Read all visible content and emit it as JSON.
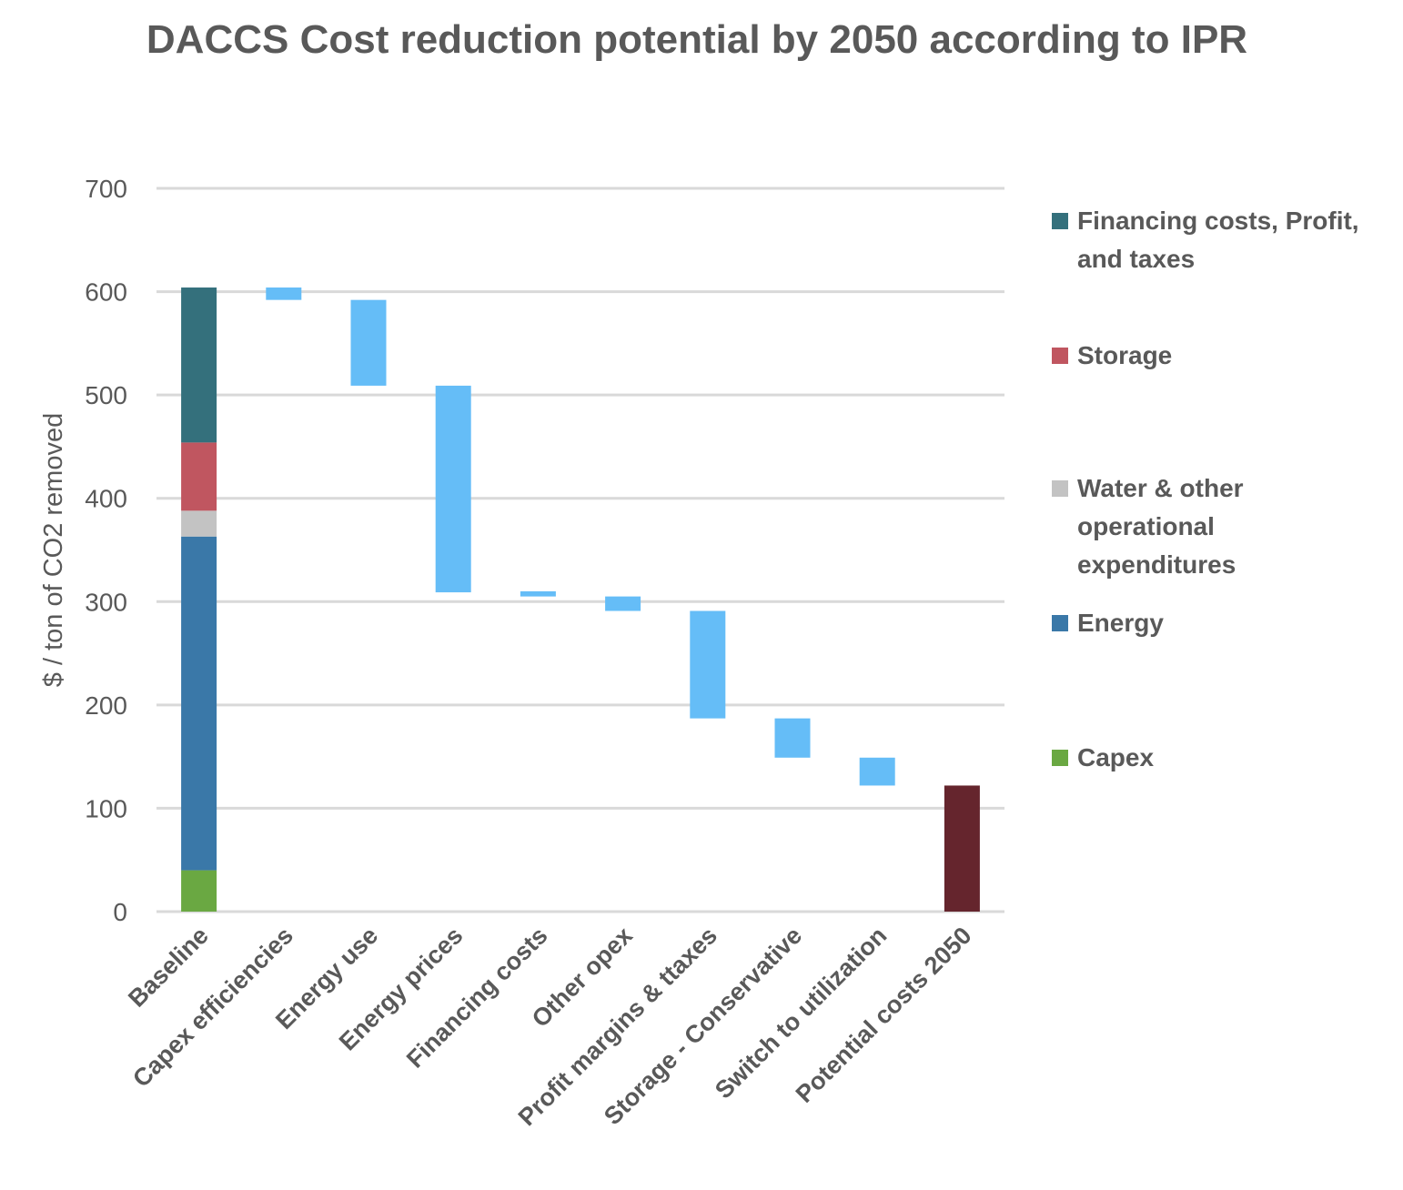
{
  "chart_data": {
    "type": "waterfall",
    "title": "DACCS Cost reduction potential by 2050 according to IPR",
    "xlabel": "",
    "ylabel": "$ / ton of CO2 removed",
    "ylim": [
      0,
      700
    ],
    "yticks": [
      0,
      100,
      200,
      300,
      400,
      500,
      600,
      700
    ],
    "grid": true,
    "legend_placement": "right",
    "categories": [
      "Baseline",
      "Capex efficiencies",
      "Energy use",
      "Energy prices",
      "Financing costs",
      "Other opex",
      "Profit margins & ttaxes",
      "Storage - Conservative",
      "Switch to utilization",
      "Potential costs 2050"
    ],
    "baseline_stack": [
      {
        "name": "Capex",
        "value": 40,
        "color": "#6aa842"
      },
      {
        "name": "Energy",
        "value": 323,
        "color": "#3a78a8"
      },
      {
        "name": "Water & other operational expenditures",
        "value": 25,
        "color": "#c3c3c3"
      },
      {
        "name": "Storage",
        "value": 66,
        "color": "#c05660"
      },
      {
        "name": "Financing costs, Profit, and taxes",
        "value": 150,
        "color": "#34707c"
      }
    ],
    "steps": [
      {
        "category": "Capex efficiencies",
        "from": 604,
        "to": 592
      },
      {
        "category": "Energy use",
        "from": 592,
        "to": 509
      },
      {
        "category": "Energy prices",
        "from": 509,
        "to": 309
      },
      {
        "category": "Financing costs",
        "from": 310,
        "to": 305
      },
      {
        "category": "Other opex",
        "from": 305,
        "to": 291
      },
      {
        "category": "Profit margins & ttaxes",
        "from": 291,
        "to": 187
      },
      {
        "category": "Storage - Conservative",
        "from": 187,
        "to": 149
      },
      {
        "category": "Switch to utilization",
        "from": 149,
        "to": 122
      }
    ],
    "step_color": "#65bdf7",
    "final": {
      "category": "Potential costs 2050",
      "value": 122,
      "color": "#65252d"
    },
    "legend": [
      "Financing costs, Profit, and taxes",
      "Storage",
      "Water & other operational expenditures",
      "Energy",
      "Capex"
    ]
  }
}
